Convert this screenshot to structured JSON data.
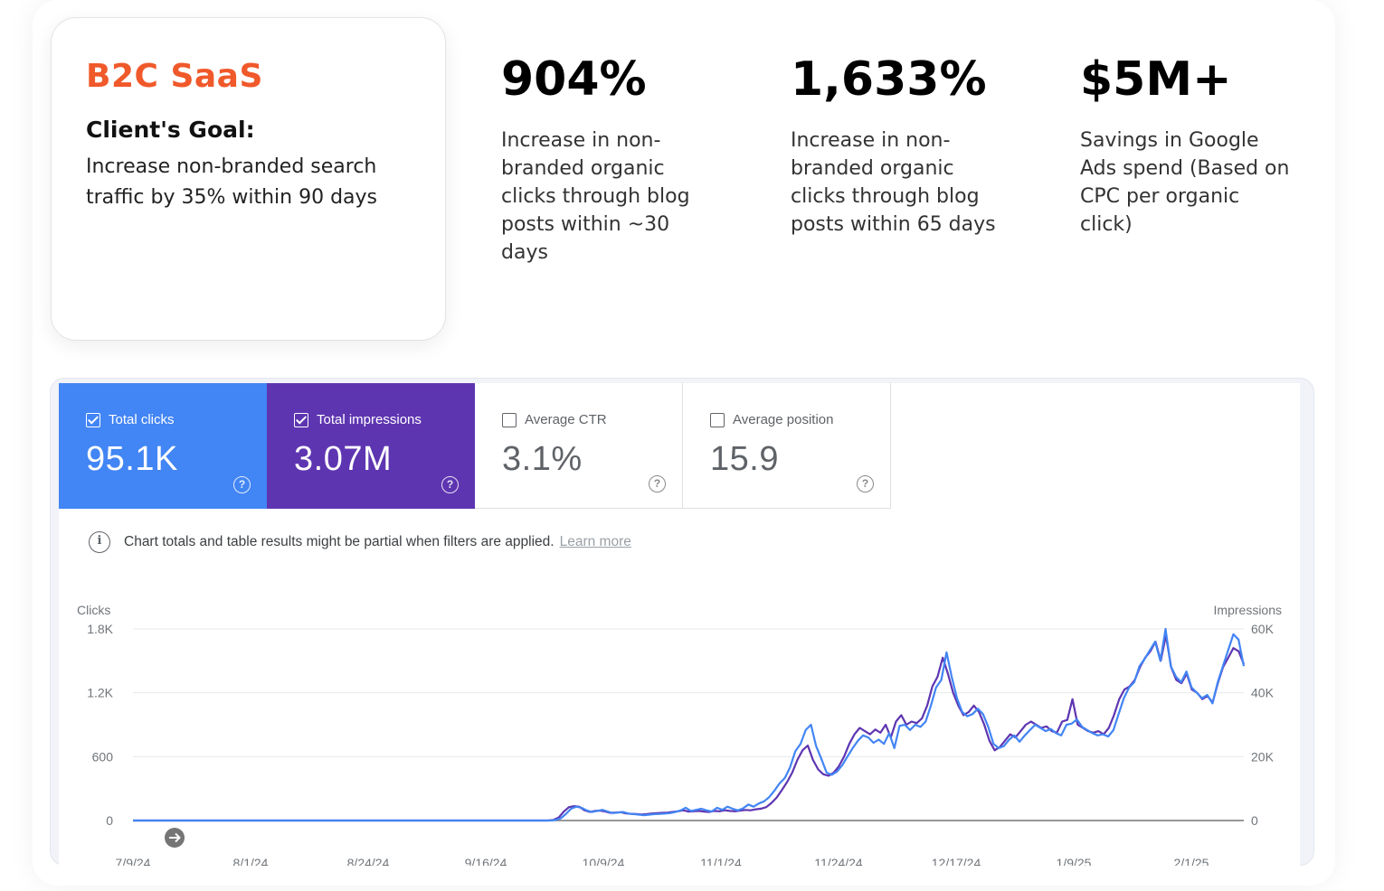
{
  "goal": {
    "title": "B2C SaaS",
    "heading": "Client's Goal:",
    "text": "Increase non-branded search traffic by 35% within 90 days"
  },
  "stats": [
    {
      "value": "904%",
      "desc": "Increase in non-branded organic clicks through blog posts within ~30 days"
    },
    {
      "value": "1,633%",
      "desc": "Increase in non-branded organic clicks through blog posts within 65 days"
    },
    {
      "value": "$5M+",
      "desc": "Savings in Google Ads spend (Based on CPC per organic click)"
    }
  ],
  "metrics": [
    {
      "label": "Total clicks",
      "value": "95.1K",
      "checked": true
    },
    {
      "label": "Total impressions",
      "value": "3.07M",
      "checked": true
    },
    {
      "label": "Average CTR",
      "value": "3.1%",
      "checked": false
    },
    {
      "label": "Average position",
      "value": "15.9",
      "checked": false
    }
  ],
  "notice": {
    "text": "Chart totals and table results might be partial when filters are applied.",
    "link": "Learn more"
  },
  "colors": {
    "clicks": "#4285f4",
    "impressions": "#5e35b1",
    "accent": "#f0592a"
  },
  "chart_data": {
    "type": "line",
    "left_axis_label": "Clicks",
    "right_axis_label": "Impressions",
    "left_ticks": [
      "0",
      "600",
      "1.2K",
      "1.8K"
    ],
    "right_ticks": [
      "0",
      "20K",
      "40K",
      "60K"
    ],
    "ylim_left": [
      0,
      1800
    ],
    "ylim_right": [
      0,
      60000
    ],
    "x_tick_labels": [
      "7/9/24",
      "8/1/24",
      "8/24/24",
      "9/16/24",
      "10/9/24",
      "11/1/24",
      "11/24/24",
      "12/17/24",
      "1/9/25",
      "2/1/25"
    ],
    "series": [
      {
        "name": "Clicks",
        "axis": "left",
        "values": [
          0,
          0,
          0,
          0,
          0,
          0,
          0,
          0,
          0,
          0,
          0,
          0,
          0,
          0,
          0,
          0,
          0,
          0,
          0,
          0,
          0,
          0,
          0,
          0,
          0,
          0,
          0,
          0,
          0,
          0,
          0,
          0,
          0,
          0,
          0,
          0,
          0,
          0,
          0,
          0,
          0,
          0,
          0,
          0,
          0,
          0,
          0,
          0,
          0,
          0,
          0,
          0,
          0,
          0,
          0,
          0,
          0,
          0,
          0,
          0,
          0,
          0,
          0,
          0,
          0,
          0,
          0,
          0,
          0,
          0,
          0,
          0,
          0,
          0,
          0,
          0,
          0,
          0,
          0,
          0,
          0,
          5,
          20,
          60,
          110,
          130,
          120,
          95,
          80,
          90,
          100,
          85,
          70,
          75,
          80,
          65,
          60,
          55,
          50,
          55,
          60,
          62,
          65,
          70,
          80,
          95,
          120,
          90,
          100,
          110,
          95,
          85,
          120,
          100,
          130,
          110,
          95,
          115,
          150,
          130,
          160,
          180,
          220,
          280,
          350,
          400,
          500,
          650,
          720,
          850,
          900,
          700,
          580,
          450,
          430,
          460,
          520,
          600,
          680,
          750,
          800,
          780,
          730,
          760,
          720,
          820,
          680,
          890,
          900,
          850,
          900,
          880,
          930,
          1080,
          1250,
          1320,
          1580,
          1350,
          1150,
          1020,
          980,
          1000,
          1050,
          1000,
          880,
          720,
          680,
          700,
          760,
          800,
          740,
          800,
          850,
          900,
          870,
          840,
          860,
          820,
          800,
          900,
          910,
          950,
          880,
          850,
          820,
          800,
          810,
          790,
          850,
          1000,
          1150,
          1250,
          1300,
          1450,
          1520,
          1600,
          1680,
          1500,
          1800,
          1450,
          1350,
          1300,
          1400,
          1250,
          1200,
          1150,
          1180,
          1100,
          1300,
          1450,
          1600,
          1750,
          1700,
          1450
        ],
        "color": "#4285f4"
      },
      {
        "name": "Impressions",
        "axis": "right",
        "values": [
          0,
          0,
          0,
          0,
          0,
          0,
          0,
          0,
          0,
          0,
          0,
          0,
          0,
          0,
          0,
          0,
          0,
          0,
          0,
          0,
          0,
          0,
          0,
          0,
          0,
          0,
          0,
          0,
          0,
          0,
          0,
          0,
          0,
          0,
          0,
          0,
          0,
          0,
          0,
          0,
          0,
          0,
          0,
          0,
          0,
          0,
          0,
          0,
          0,
          0,
          0,
          0,
          0,
          0,
          0,
          0,
          0,
          0,
          0,
          0,
          0,
          0,
          0,
          0,
          0,
          0,
          0,
          0,
          0,
          0,
          0,
          0,
          0,
          0,
          0,
          0,
          0,
          0,
          0,
          0,
          0,
          200,
          900,
          2800,
          4200,
          4500,
          4300,
          3200,
          2700,
          3000,
          3100,
          2800,
          2400,
          2500,
          2600,
          2200,
          2100,
          2000,
          1900,
          2000,
          2200,
          2300,
          2400,
          2500,
          2700,
          2900,
          3200,
          2800,
          2900,
          3000,
          2800,
          2700,
          3000,
          2900,
          3200,
          3000,
          2900,
          3100,
          3300,
          3200,
          3500,
          3700,
          4200,
          5500,
          7200,
          9500,
          12000,
          15000,
          19000,
          22000,
          23500,
          19000,
          16000,
          14500,
          14000,
          15000,
          17000,
          20000,
          24000,
          27000,
          29000,
          28000,
          27000,
          28500,
          27500,
          30000,
          26000,
          31000,
          33000,
          30000,
          31000,
          30500,
          32000,
          36000,
          42000,
          45000,
          51000,
          46000,
          40000,
          36000,
          33000,
          34000,
          36000,
          34000,
          30000,
          25000,
          22000,
          23000,
          25000,
          27000,
          26000,
          28000,
          30000,
          31000,
          30000,
          29000,
          29500,
          28000,
          27500,
          31000,
          31500,
          38000,
          30000,
          29000,
          28000,
          27500,
          28000,
          27000,
          29000,
          33000,
          38000,
          41000,
          42000,
          44000,
          48000,
          51000,
          53000,
          56000,
          50000,
          58000,
          48000,
          44000,
          43000,
          46000,
          41000,
          40000,
          38000,
          39000,
          37000,
          43000,
          48000,
          51000,
          54000,
          53000,
          49000
        ],
        "color": "#5e35b1"
      }
    ],
    "grid": true
  }
}
